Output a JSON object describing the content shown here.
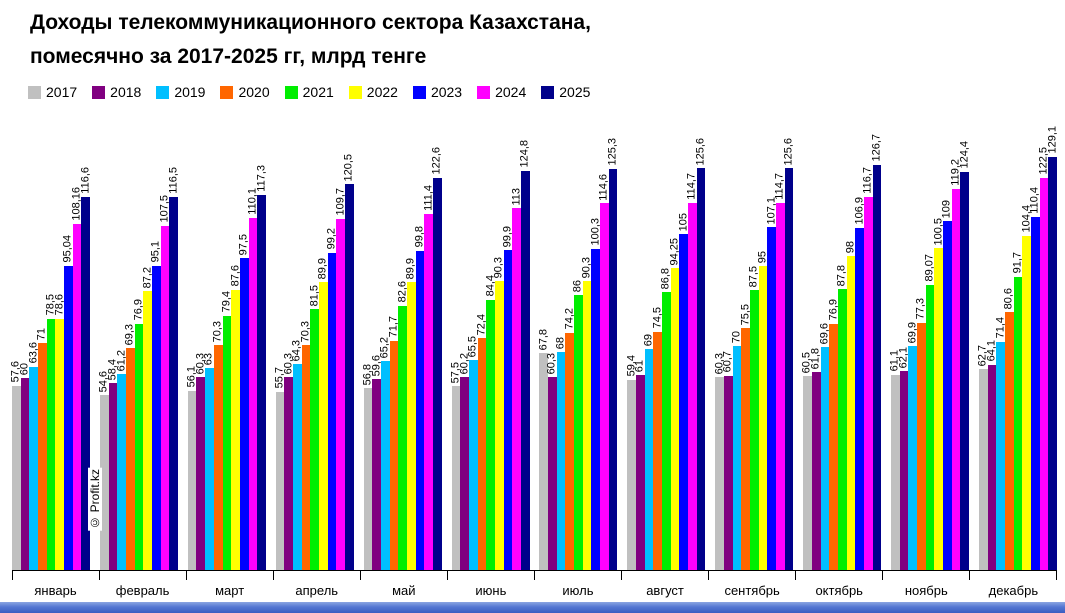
{
  "title": {
    "line1": "Доходы телекоммуникационного сектора Казахстана,",
    "line2": "помесячно за 2017-2025 гг, млрд тенге"
  },
  "watermark": "© Profit.kz",
  "chart_data": {
    "type": "bar",
    "title": "Доходы телекоммуникационного сектора Казахстана, помесячно за 2017-2025 гг, млрд тенге",
    "ylabel": "млрд тенге",
    "ylim": [
      0,
      130
    ],
    "grid": false,
    "legend_position": "top-left",
    "value_labels": "rotated 90° above bars, comma decimal separator",
    "categories": [
      "январь",
      "февраль",
      "март",
      "апрель",
      "май",
      "июнь",
      "июль",
      "август",
      "сентябрь",
      "октябрь",
      "ноябрь",
      "декабрь"
    ],
    "series": [
      {
        "name": "2017",
        "color": "#c0c0c0",
        "values": [
          57.6,
          54.6,
          56.1,
          55.7,
          56.8,
          57.5,
          67.8,
          59.4,
          60.3,
          60.5,
          61.1,
          62.7
        ],
        "labels": [
          "57,6",
          "54,6",
          "56,1",
          "55,7",
          "56,8",
          "57,5",
          "67,8",
          "59,4",
          "60,3",
          "60,5",
          "61,1",
          "62,7"
        ]
      },
      {
        "name": "2018",
        "color": "#800080",
        "values": [
          60,
          58.4,
          60.3,
          60.3,
          59.6,
          60.2,
          60.3,
          61,
          60.7,
          61.8,
          62.1,
          64.1
        ],
        "labels": [
          "60",
          "58,4",
          "60,3",
          "60,3",
          "59,6",
          "60,2",
          "60,3",
          "61",
          "60,7",
          "61,8",
          "62,1",
          "64,1"
        ]
      },
      {
        "name": "2019",
        "color": "#00bfff",
        "values": [
          63.6,
          61.2,
          63,
          64.3,
          65.2,
          65.5,
          68,
          69,
          70,
          69.6,
          69.9,
          71.4
        ],
        "labels": [
          "63,6",
          "61,2",
          "63",
          "64,3",
          "65,2",
          "65,5",
          "68",
          "69",
          "70",
          "69,6",
          "69,9",
          "71,4"
        ]
      },
      {
        "name": "2020",
        "color": "#ff6600",
        "values": [
          71,
          69.3,
          70.3,
          70.3,
          71.7,
          72.4,
          74.2,
          74.5,
          75.5,
          76.9,
          77.3,
          80.6
        ],
        "labels": [
          "71",
          "69,3",
          "70,3",
          "70,3",
          "71,7",
          "72,4",
          "74,2",
          "74,5",
          "75,5",
          "76,9",
          "77,3",
          "80,6"
        ]
      },
      {
        "name": "2021",
        "color": "#00ee00",
        "values": [
          78.5,
          76.9,
          79.4,
          81.5,
          82.6,
          84.4,
          86,
          86.8,
          87.5,
          87.8,
          89.07,
          91.7
        ],
        "labels": [
          "78,5",
          "76,9",
          "79,4",
          "81,5",
          "82,6",
          "84,4",
          "86",
          "86,8",
          "87,5",
          "87,8",
          "89,07",
          "91,7"
        ]
      },
      {
        "name": "2022",
        "color": "#ffff00",
        "values": [
          78.6,
          87.2,
          87.6,
          89.9,
          89.9,
          90.3,
          90.3,
          94.25,
          95,
          98,
          100.5,
          104.4
        ],
        "labels": [
          "78,6",
          "87,2",
          "87,6",
          "89,9",
          "89,9",
          "90,3",
          "90,3",
          "94,25",
          "95",
          "98",
          "100,5",
          "104,4"
        ]
      },
      {
        "name": "2023",
        "color": "#0000ff",
        "values": [
          95.04,
          95.1,
          97.5,
          99.2,
          99.8,
          99.9,
          100.3,
          105,
          107.1,
          106.9,
          109,
          110.4
        ],
        "labels": [
          "95,04",
          "95,1",
          "97,5",
          "99,2",
          "99,8",
          "99,9",
          "100,3",
          "105",
          "107,1",
          "106,9",
          "109",
          "110,4"
        ]
      },
      {
        "name": "2024",
        "color": "#ff00ff",
        "values": [
          108.16,
          107.5,
          110.1,
          109.7,
          111.4,
          113,
          114.6,
          114.7,
          114.7,
          116.7,
          119.2,
          122.5
        ],
        "labels": [
          "108,16",
          "107,5",
          "110,1",
          "109,7",
          "111,4",
          "113",
          "114,6",
          "114,7",
          "114,7",
          "116,7",
          "119,2",
          "122,5"
        ]
      },
      {
        "name": "2025",
        "color": "#00008b",
        "values": [
          116.6,
          116.5,
          117.3,
          120.5,
          122.6,
          124.8,
          125.3,
          125.6,
          125.6,
          126.7,
          124.4,
          129.1
        ],
        "labels": [
          "116,6",
          "116,5",
          "117,3",
          "120,5",
          "122,6",
          "124,8",
          "125,3",
          "125,6",
          "125,6",
          "126,7",
          "124,4",
          "129,1"
        ]
      }
    ]
  }
}
